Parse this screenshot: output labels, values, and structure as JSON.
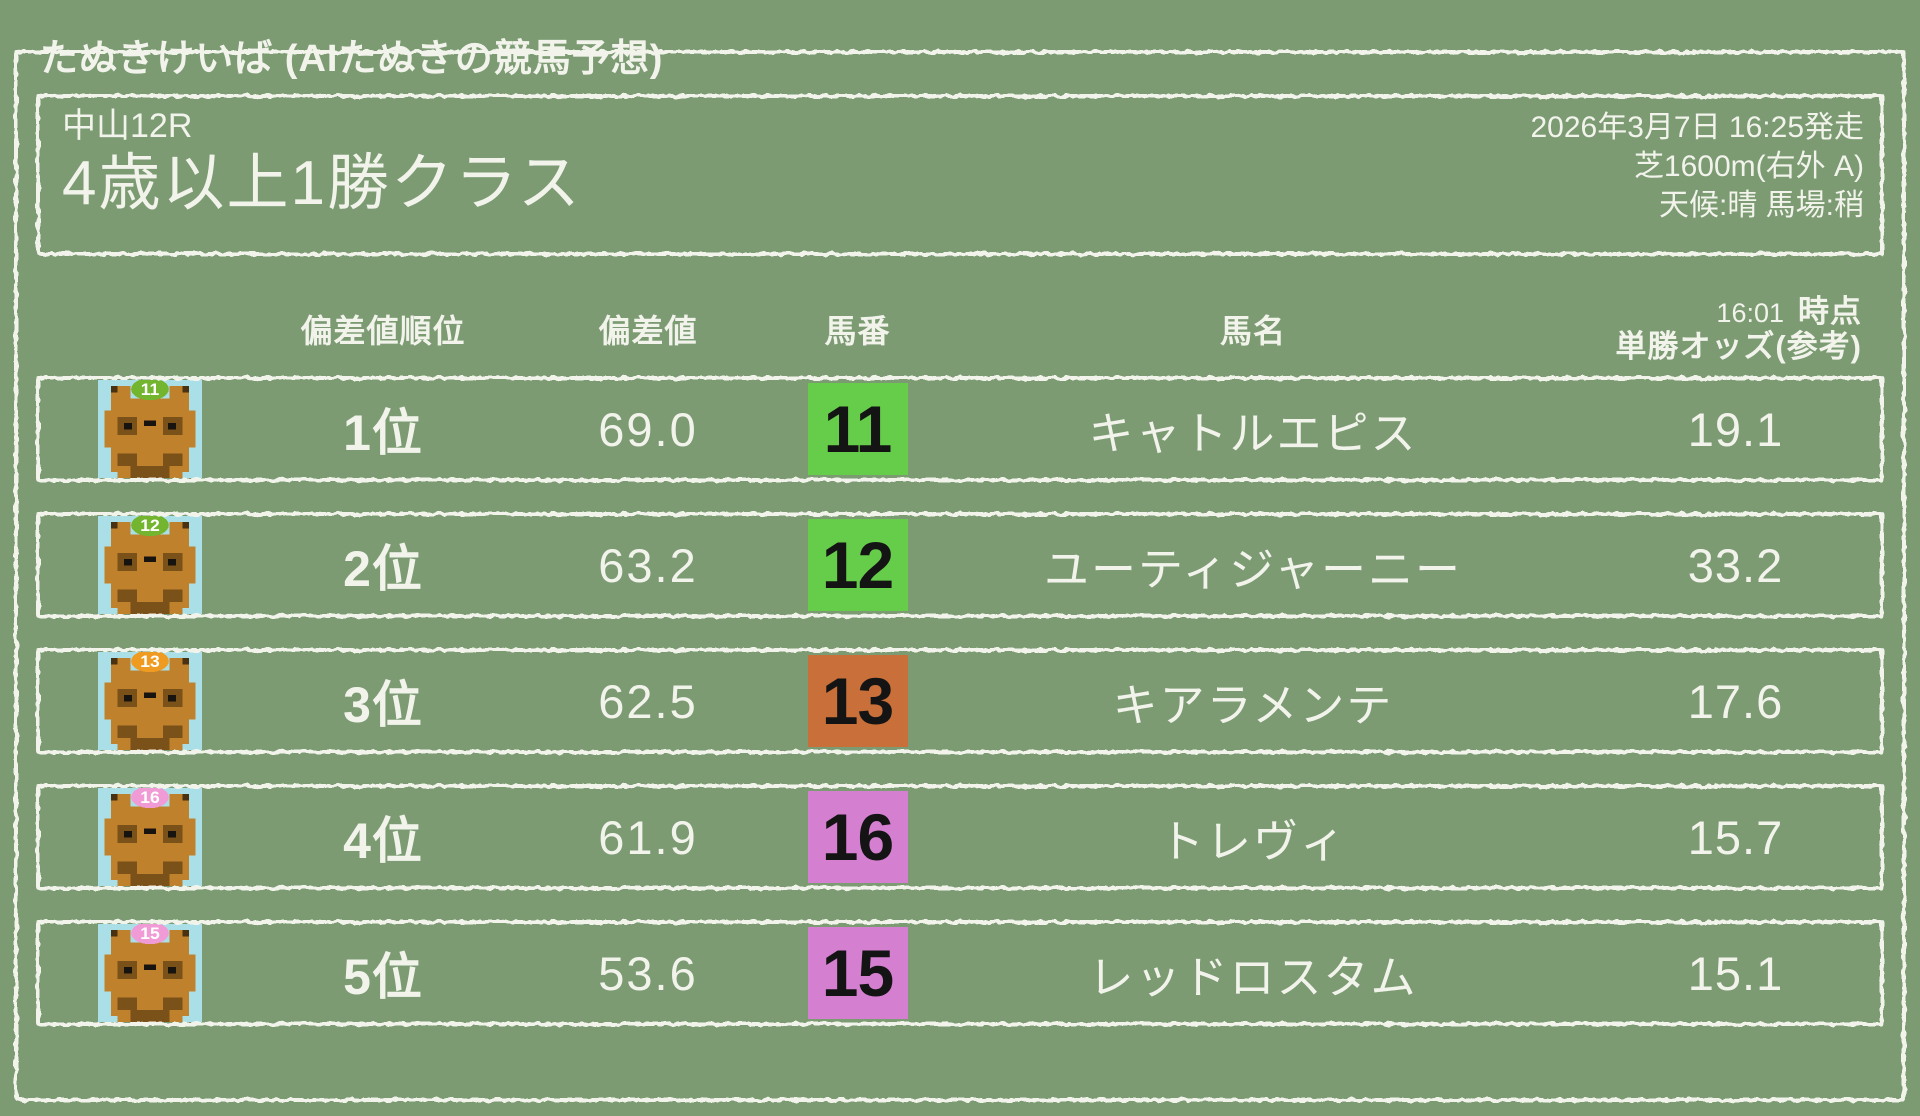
{
  "app_title": "たぬきけいば (AIたぬきの競馬予想)",
  "race": {
    "venue_race": "中山12R",
    "class_name": "4歳以上1勝クラス",
    "start_datetime": "2026年3月7日 16:25発走",
    "course": "芝1600m(右外 A)",
    "conditions": "天候:晴 馬場:稍"
  },
  "table": {
    "headers": {
      "rank": "偏差値順位",
      "score": "偏差値",
      "horse_number": "馬番",
      "horse_name": "馬名",
      "odds_time": "16:01",
      "odds_time_label": "時点",
      "odds_label": "単勝オッズ(参考)"
    },
    "rows": [
      {
        "rank": "1位",
        "score": "69.0",
        "number": "11",
        "number_color": "#66CD4A",
        "leaf_color": "#74B52F",
        "name": "キャトルエピス",
        "odds": "19.1"
      },
      {
        "rank": "2位",
        "score": "63.2",
        "number": "12",
        "number_color": "#66CD4A",
        "leaf_color": "#74B52F",
        "name": "ユーティジャーニー",
        "odds": "33.2"
      },
      {
        "rank": "3位",
        "score": "62.5",
        "number": "13",
        "number_color": "#C96F3A",
        "leaf_color": "#EF9A20",
        "name": "キアラメンテ",
        "odds": "17.6"
      },
      {
        "rank": "4位",
        "score": "61.9",
        "number": "16",
        "number_color": "#D57FD0",
        "leaf_color": "#F09BD5",
        "name": "トレヴィ",
        "odds": "15.7"
      },
      {
        "rank": "5位",
        "score": "53.6",
        "number": "15",
        "number_color": "#D57FD0",
        "leaf_color": "#F09BD5",
        "name": "レッドロスタム",
        "odds": "15.1"
      }
    ]
  },
  "colors": {
    "background": "#7C9B73",
    "chalk": "#F2F4EC",
    "badge_text": "#141414",
    "avatar": {
      "background": "#ABDFE7",
      "body": "#C0812C",
      "shade": "#7A5118",
      "ear_tip": "#4A3110",
      "features": "#17130E",
      "leaf_number_text": "#FFFFFF"
    }
  }
}
